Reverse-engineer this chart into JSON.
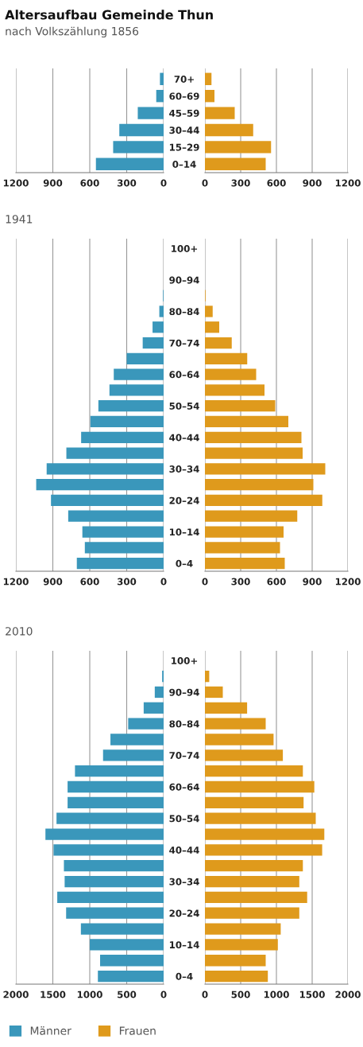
{
  "chart_data": [
    {
      "type": "bar",
      "orientation": "horizontal",
      "title": "Altersaufbau Gemeinde Thun",
      "subtitle": "nach Volkszählung 1856",
      "series": [
        {
          "color": "#3a97bb",
          "values": [
            30,
            60,
            210,
            360,
            410,
            550
          ]
        }
      ],
      "xlim": [
        1200,
        0
      ],
      "xticks": [
        1200,
        900,
        600,
        300,
        0
      ],
      "grid": "x",
      "tick_labels": "x"
    },
    {
      "type": "bar",
      "orientation": "horizontal",
      "categories": [
        "70+",
        "60–69",
        "45–59",
        "30–44",
        "15–29",
        "0–14"
      ],
      "series": [
        {
          "color": "#df9a1c",
          "values": [
            55,
            80,
            250,
            405,
            555,
            510
          ]
        }
      ],
      "xlim": [
        0,
        1200
      ],
      "xticks": [
        0,
        300,
        600,
        900,
        1200
      ],
      "grid": "x"
    },
    {
      "type": "bar",
      "orientation": "horizontal",
      "title": "1941",
      "series": [
        {
          "color": "#3a97bb",
          "values": [
            0,
            0,
            0,
            5,
            35,
            90,
            170,
            300,
            405,
            440,
            530,
            595,
            670,
            790,
            950,
            1035,
            915,
            775,
            660,
            640,
            705
          ]
        }
      ],
      "xlim": [
        1200,
        0
      ],
      "xticks": [
        1200,
        900,
        600,
        300,
        0
      ],
      "grid": "x",
      "tick_labels": "x"
    },
    {
      "type": "bar",
      "orientation": "horizontal",
      "categories": [
        "100+",
        null,
        "90–94",
        null,
        "80–84",
        null,
        "70–74",
        null,
        "60–64",
        null,
        "50–54",
        null,
        "40–44",
        null,
        "30–34",
        null,
        "20–24",
        null,
        "10–14",
        null,
        "0–4"
      ],
      "series": [
        {
          "color": "#df9a1c",
          "values": [
            0,
            0,
            0,
            5,
            65,
            120,
            225,
            355,
            430,
            500,
            590,
            700,
            810,
            820,
            1010,
            910,
            985,
            775,
            660,
            630,
            670
          ]
        }
      ],
      "xlim": [
        0,
        1200
      ],
      "xticks": [
        0,
        300,
        600,
        900,
        1200
      ],
      "grid": "x"
    },
    {
      "type": "bar",
      "orientation": "horizontal",
      "title": "2010",
      "series": [
        {
          "name": "Männer",
          "color": "#3a97bb",
          "values": [
            0,
            20,
            120,
            270,
            480,
            720,
            820,
            1200,
            1300,
            1300,
            1450,
            1600,
            1490,
            1350,
            1340,
            1440,
            1320,
            1120,
            1000,
            860,
            890
          ]
        }
      ],
      "xlim": [
        2000,
        0
      ],
      "xticks": [
        2000,
        1500,
        1000,
        500,
        0
      ],
      "grid": "x",
      "tick_labels": "x",
      "legend": "bottom"
    },
    {
      "type": "bar",
      "orientation": "horizontal",
      "categories": [
        "100+",
        null,
        "90–94",
        null,
        "80–84",
        null,
        "70–74",
        null,
        "60–64",
        null,
        "50–54",
        null,
        "40–44",
        null,
        "30–34",
        null,
        "20–24",
        null,
        "10–14",
        null,
        "0–4"
      ],
      "series": [
        {
          "name": "Frauen",
          "color": "#df9a1c",
          "values": [
            0,
            60,
            250,
            590,
            850,
            960,
            1090,
            1370,
            1530,
            1380,
            1550,
            1670,
            1640,
            1370,
            1320,
            1430,
            1320,
            1060,
            1020,
            850,
            880
          ]
        }
      ],
      "xlim": [
        0,
        2000
      ],
      "xticks": [
        0,
        500,
        1000,
        1500,
        2000
      ],
      "grid": "x",
      "legend": "bottom"
    }
  ]
}
